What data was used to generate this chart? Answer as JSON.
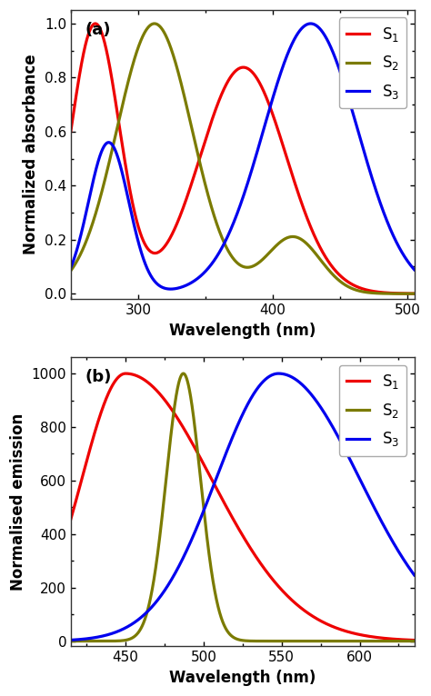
{
  "panel_a": {
    "label": "(a)",
    "xlabel": "Wavelength (nm)",
    "ylabel": "Normalized absorbance",
    "xlim": [
      250,
      505
    ],
    "ylim": [
      -0.02,
      1.05
    ],
    "yticks": [
      0.0,
      0.2,
      0.4,
      0.6,
      0.8,
      1.0
    ],
    "xticks": [
      300,
      400,
      500
    ],
    "s1_color": "#EE0000",
    "s2_color": "#7B7B00",
    "s3_color": "#0000EE",
    "legend_labels": [
      "S$_1$",
      "S$_2$",
      "S$_3$"
    ]
  },
  "panel_b": {
    "label": "(b)",
    "xlabel": "Wavelength (nm)",
    "ylabel": "Normalised emission",
    "xlim": [
      415,
      635
    ],
    "ylim": [
      -20,
      1060
    ],
    "yticks": [
      0,
      200,
      400,
      600,
      800,
      1000
    ],
    "xticks": [
      450,
      500,
      550,
      600
    ],
    "s1_color": "#EE0000",
    "s2_color": "#7B7B00",
    "s3_color": "#0000EE",
    "legend_labels": [
      "S$_1$",
      "S$_2$",
      "S$_3$"
    ]
  },
  "linewidth": 2.3,
  "background_color": "#ffffff"
}
